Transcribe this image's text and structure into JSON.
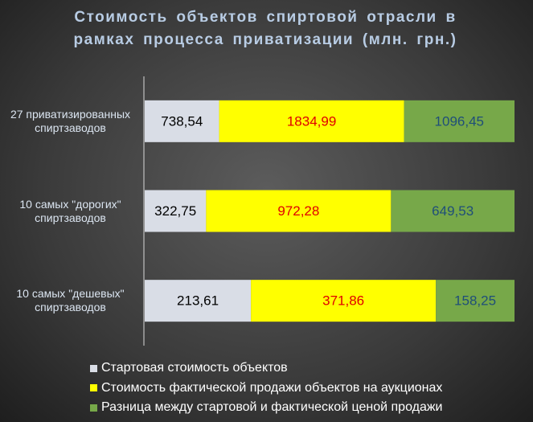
{
  "chart_data": {
    "type": "bar",
    "orientation": "horizontal",
    "stacking": "percent",
    "title": "Стоимость объектов спиртовой отрасли в рамках процесса приватизации (млн. грн.)",
    "categories": [
      "27 приватизированных спиртзаводов",
      "10 самых \"дорогих\" спиртзаводов",
      "10 самых \"дешевых\" спиртзаводов"
    ],
    "series": [
      {
        "name": "Стартовая стоимость объектов",
        "color": "#d9dde6",
        "label_color": "#000000",
        "values": [
          738.54,
          322.75,
          213.61
        ],
        "value_labels": [
          "738,54",
          "322,75",
          "213,61"
        ]
      },
      {
        "name": "Стоимость фактической продажи объектов на аукционах",
        "color": "#ffff00",
        "label_color": "#e00000",
        "values": [
          1834.99,
          972.28,
          371.86
        ],
        "value_labels": [
          "1834,99",
          "972,28",
          "371,86"
        ]
      },
      {
        "name": "Разница между стартовой и фактической ценой продажи",
        "color": "#77a849",
        "label_color": "#1f4e79",
        "values": [
          1096.45,
          649.53,
          158.25
        ],
        "value_labels": [
          "1096,45",
          "649,53",
          "158,25"
        ]
      }
    ],
    "legend": "bottom-left"
  }
}
